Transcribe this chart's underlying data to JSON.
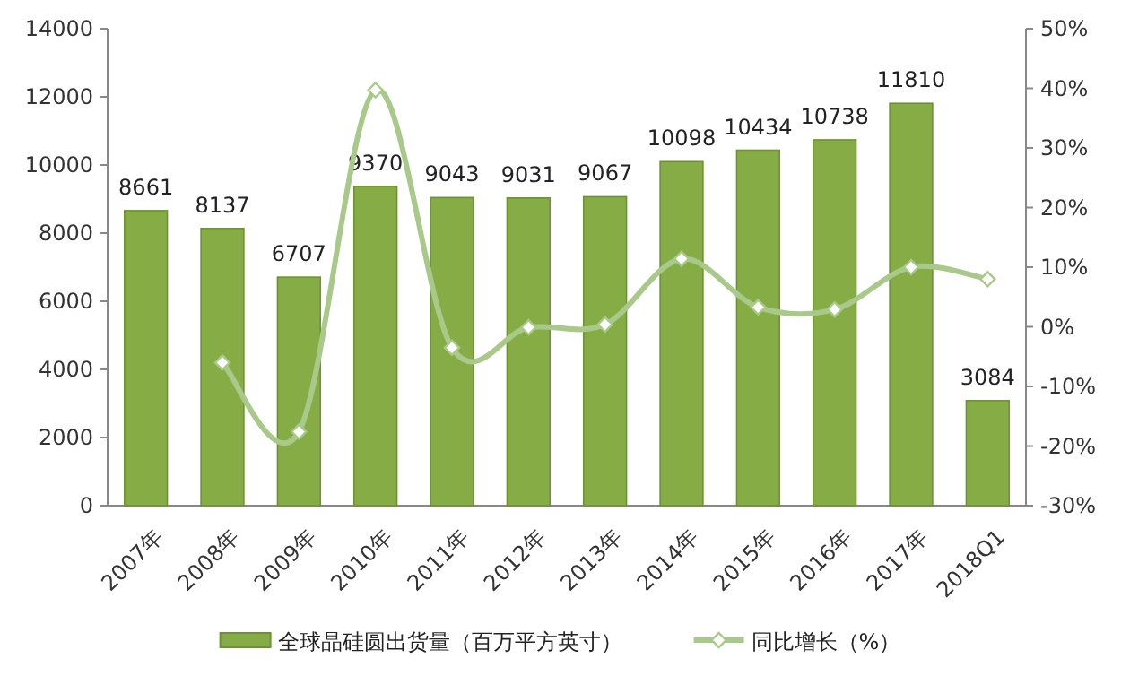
{
  "chart_data": {
    "type": "bar",
    "categories": [
      "2007年",
      "2008年",
      "2009年",
      "2010年",
      "2011年",
      "2012年",
      "2013年",
      "2014年",
      "2015年",
      "2016年",
      "2017年",
      "2018Q1"
    ],
    "series": [
      {
        "name": "全球晶硅圆出货量（百万平方英寸）",
        "color": "#86ad45",
        "values": [
          8661,
          8137,
          6707,
          9370,
          9043,
          9031,
          9067,
          10098,
          10434,
          10738,
          11810,
          3084
        ],
        "value_labels": [
          "8661",
          "8137",
          "6707",
          "9370",
          "9043",
          "9031",
          "9067",
          "10098",
          "10434",
          "10738",
          "11810",
          "3084"
        ]
      },
      {
        "name": "同比增长（%）",
        "type": "line",
        "axis": "y2",
        "color": "#a9c98a",
        "marker": "diamond",
        "values": [
          null,
          -6,
          -17.6,
          39.7,
          -3.5,
          -0.1,
          0.4,
          11.4,
          3.3,
          2.9,
          10,
          8
        ]
      }
    ],
    "ylim": [
      0,
      14000
    ],
    "yticks": [
      0,
      2000,
      4000,
      6000,
      8000,
      10000,
      12000,
      14000
    ],
    "y2lim": [
      -30,
      50
    ],
    "y2ticks": [
      {
        "value": -30,
        "label": "-30%"
      },
      {
        "value": -20,
        "label": "-20%"
      },
      {
        "value": -10,
        "label": "-10%"
      },
      {
        "value": 0,
        "label": "0%"
      },
      {
        "value": 10,
        "label": "10%"
      },
      {
        "value": 20,
        "label": "20%"
      },
      {
        "value": 30,
        "label": "30%"
      },
      {
        "value": 40,
        "label": "40%"
      },
      {
        "value": 50,
        "label": "50%"
      }
    ],
    "grid": false,
    "legend": "bottom"
  }
}
